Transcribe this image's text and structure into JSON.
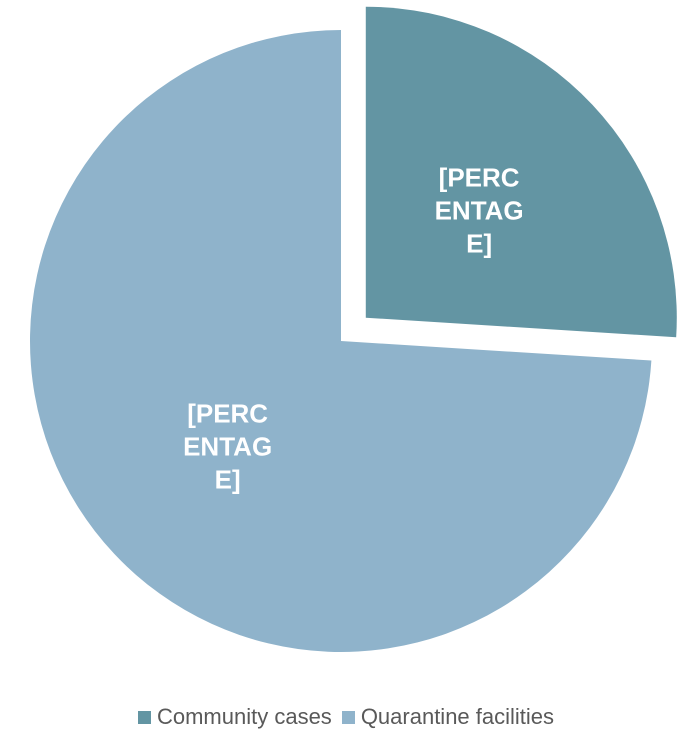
{
  "chart_data": {
    "type": "pie",
    "categories": [
      "Community cases",
      "Quarantine facilities"
    ],
    "values": [
      26,
      74
    ],
    "value_labels": [
      "[PERCENTAGE]",
      "[PERCENTAGE]"
    ],
    "colors": [
      "#6395a3",
      "#8fb3cb"
    ],
    "exploded": [
      true,
      false
    ],
    "legend": "bottom"
  }
}
